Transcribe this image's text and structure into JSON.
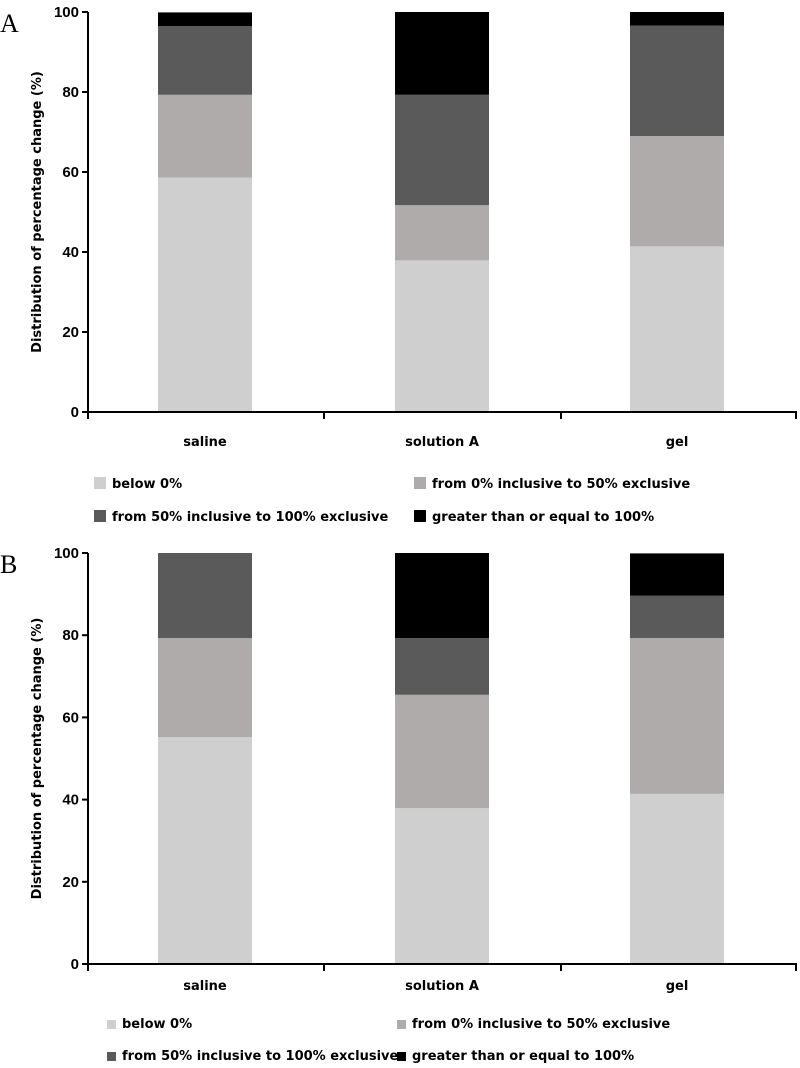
{
  "chart_data": [
    {
      "type": "bar",
      "stacked": true,
      "panel_label": "A",
      "ylabel": "Distribution of percentage change  (%)",
      "ylim": [
        0,
        100
      ],
      "yticks": [
        0,
        20,
        40,
        60,
        80,
        100
      ],
      "categories": [
        "saline",
        "solution A",
        "gel"
      ],
      "legend_placement": "bottom",
      "series": [
        {
          "name": "below 0%",
          "color": "#d0cfd0",
          "values": [
            58.6,
            37.9,
            41.4
          ]
        },
        {
          "name": "from 0% inclusive to 50% exclusive",
          "color": "#aeabaa",
          "values": [
            20.7,
            13.8,
            27.6
          ]
        },
        {
          "name": "from 50% inclusive to 100% exclusive",
          "color": "#5a5a5a",
          "values": [
            17.2,
            27.6,
            27.6
          ]
        },
        {
          "name": "greater than or equal to 100%",
          "color": "#000000",
          "values": [
            3.4,
            20.7,
            3.4
          ]
        }
      ]
    },
    {
      "type": "bar",
      "stacked": true,
      "panel_label": "B",
      "ylabel": "Distribution of percentage change  (%)",
      "ylim": [
        0,
        100
      ],
      "yticks": [
        0,
        20,
        40,
        60,
        80,
        100
      ],
      "categories": [
        "saline",
        "solution A",
        "gel"
      ],
      "legend_placement": "bottom",
      "series": [
        {
          "name": "below 0%",
          "color": "#d0cfd0",
          "values": [
            55.2,
            37.9,
            41.4
          ]
        },
        {
          "name": "from 0% inclusive to 50% exclusive",
          "color": "#aeabaa",
          "values": [
            24.1,
            27.6,
            37.9
          ]
        },
        {
          "name": "from 50% inclusive to 100% exclusive",
          "color": "#5a5a5a",
          "values": [
            20.7,
            13.8,
            10.3
          ]
        },
        {
          "name": "greater than or equal to 100%",
          "color": "#000000",
          "values": [
            0,
            20.7,
            10.3
          ]
        }
      ]
    }
  ]
}
